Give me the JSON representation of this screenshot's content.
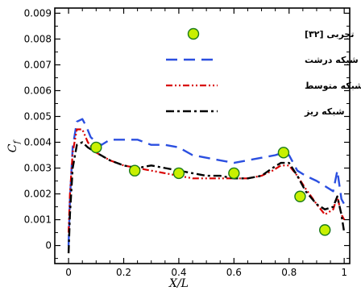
{
  "chart_data": {
    "type": "line",
    "xlabel": "X/L",
    "ylabel": "Cf",
    "ylabel_main": "C",
    "ylabel_sub": "f",
    "xlim": [
      -0.05,
      1.02
    ],
    "ylim": [
      -0.0007,
      0.0092
    ],
    "x_ticks": [
      0,
      0.2,
      0.4,
      0.6,
      0.8,
      1
    ],
    "x_tick_labels": [
      "0",
      "0.2",
      "0.4",
      "0.6",
      "0.8",
      "1"
    ],
    "y_ticks": [
      0,
      0.001,
      0.002,
      0.003,
      0.004,
      0.005,
      0.006,
      0.007,
      0.008,
      0.009
    ],
    "y_tick_labels": [
      "0",
      "0.001",
      "0.002",
      "0.003",
      "0.004",
      "0.005",
      "0.006",
      "0.007",
      "0.008",
      "0.009"
    ],
    "grid": false,
    "legend_position": "top-right",
    "colors": {
      "coarse": "#2b4fe0",
      "medium": "#d80000",
      "fine": "#000000",
      "marker_fill": "#c8f000",
      "marker_edge": "#1a7a1a"
    },
    "series": [
      {
        "name": "تجربی [۳۲]",
        "style": "markers",
        "points": [
          [
            0.1,
            0.0038
          ],
          [
            0.24,
            0.0029
          ],
          [
            0.4,
            0.0028
          ],
          [
            0.6,
            0.0028
          ],
          [
            0.78,
            0.0036
          ],
          [
            0.84,
            0.0019
          ],
          [
            0.93,
            0.0006
          ]
        ]
      },
      {
        "name": "شبکه درشت",
        "style": "long-dash",
        "points": [
          [
            0.0,
            0.0
          ],
          [
            0.005,
            0.0018
          ],
          [
            0.015,
            0.0038
          ],
          [
            0.03,
            0.0048
          ],
          [
            0.05,
            0.0049
          ],
          [
            0.065,
            0.0046
          ],
          [
            0.08,
            0.0042
          ],
          [
            0.1,
            0.004
          ],
          [
            0.12,
            0.0039
          ],
          [
            0.15,
            0.0041
          ],
          [
            0.2,
            0.0041
          ],
          [
            0.25,
            0.0041
          ],
          [
            0.3,
            0.0039
          ],
          [
            0.35,
            0.0039
          ],
          [
            0.4,
            0.0038
          ],
          [
            0.45,
            0.0035
          ],
          [
            0.5,
            0.0034
          ],
          [
            0.55,
            0.0033
          ],
          [
            0.6,
            0.0032
          ],
          [
            0.65,
            0.0033
          ],
          [
            0.7,
            0.0034
          ],
          [
            0.75,
            0.0035
          ],
          [
            0.78,
            0.0036
          ],
          [
            0.8,
            0.0035
          ],
          [
            0.83,
            0.0029
          ],
          [
            0.86,
            0.0027
          ],
          [
            0.9,
            0.0025
          ],
          [
            0.93,
            0.0023
          ],
          [
            0.96,
            0.0021
          ],
          [
            0.975,
            0.0029
          ],
          [
            0.99,
            0.0018
          ],
          [
            1.0,
            0.0016
          ]
        ]
      },
      {
        "name": "شبکه متوسط",
        "style": "dash-dot-dot",
        "points": [
          [
            0.0,
            0.0005
          ],
          [
            0.005,
            0.002
          ],
          [
            0.015,
            0.0036
          ],
          [
            0.03,
            0.0045
          ],
          [
            0.05,
            0.0045
          ],
          [
            0.07,
            0.004
          ],
          [
            0.1,
            0.0036
          ],
          [
            0.15,
            0.0033
          ],
          [
            0.2,
            0.0031
          ],
          [
            0.25,
            0.003
          ],
          [
            0.3,
            0.0029
          ],
          [
            0.35,
            0.0028
          ],
          [
            0.4,
            0.0027
          ],
          [
            0.45,
            0.0026
          ],
          [
            0.5,
            0.0026
          ],
          [
            0.55,
            0.0026
          ],
          [
            0.6,
            0.0026
          ],
          [
            0.65,
            0.0026
          ],
          [
            0.7,
            0.0027
          ],
          [
            0.74,
            0.0029
          ],
          [
            0.77,
            0.0031
          ],
          [
            0.8,
            0.0031
          ],
          [
            0.83,
            0.0027
          ],
          [
            0.86,
            0.0022
          ],
          [
            0.9,
            0.0016
          ],
          [
            0.93,
            0.0012
          ],
          [
            0.96,
            0.0014
          ],
          [
            0.975,
            0.0019
          ],
          [
            0.99,
            0.0012
          ],
          [
            1.0,
            0.001
          ]
        ]
      },
      {
        "name": "شبکه ریز",
        "style": "dash-dot",
        "points": [
          [
            0.0,
            -0.0003
          ],
          [
            0.005,
            0.0012
          ],
          [
            0.015,
            0.003
          ],
          [
            0.03,
            0.0039
          ],
          [
            0.05,
            0.004
          ],
          [
            0.07,
            0.0038
          ],
          [
            0.1,
            0.0036
          ],
          [
            0.15,
            0.0033
          ],
          [
            0.2,
            0.0031
          ],
          [
            0.25,
            0.003
          ],
          [
            0.3,
            0.0031
          ],
          [
            0.35,
            0.003
          ],
          [
            0.4,
            0.0029
          ],
          [
            0.45,
            0.0028
          ],
          [
            0.5,
            0.0027
          ],
          [
            0.55,
            0.0027
          ],
          [
            0.6,
            0.0026
          ],
          [
            0.65,
            0.0026
          ],
          [
            0.7,
            0.0027
          ],
          [
            0.74,
            0.003
          ],
          [
            0.77,
            0.0032
          ],
          [
            0.8,
            0.0032
          ],
          [
            0.83,
            0.0027
          ],
          [
            0.86,
            0.0021
          ],
          [
            0.9,
            0.0016
          ],
          [
            0.93,
            0.0014
          ],
          [
            0.96,
            0.0015
          ],
          [
            0.975,
            0.0019
          ],
          [
            0.99,
            0.0012
          ],
          [
            1.0,
            0.0005
          ]
        ]
      }
    ]
  }
}
